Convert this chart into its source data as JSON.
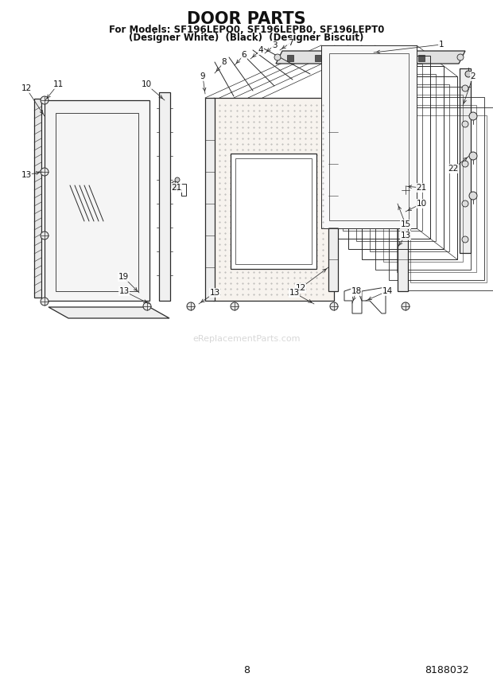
{
  "title": "DOOR PARTS",
  "subtitle_line1": "For Models: SF196LEPQ0, SF196LEPB0, SF196LEPT0",
  "subtitle_line2": "(Designer White)  (Black)  (Designer Biscuit)",
  "page_number": "8",
  "part_number": "8188032",
  "background_color": "#ffffff",
  "title_fontsize": 15,
  "subtitle_fontsize": 8.5,
  "watermark_text": "eReplacementParts.com",
  "watermark_color": "#c8c8c8",
  "diagram_line_color": "#2a2a2a",
  "label_fontsize": 7.5
}
